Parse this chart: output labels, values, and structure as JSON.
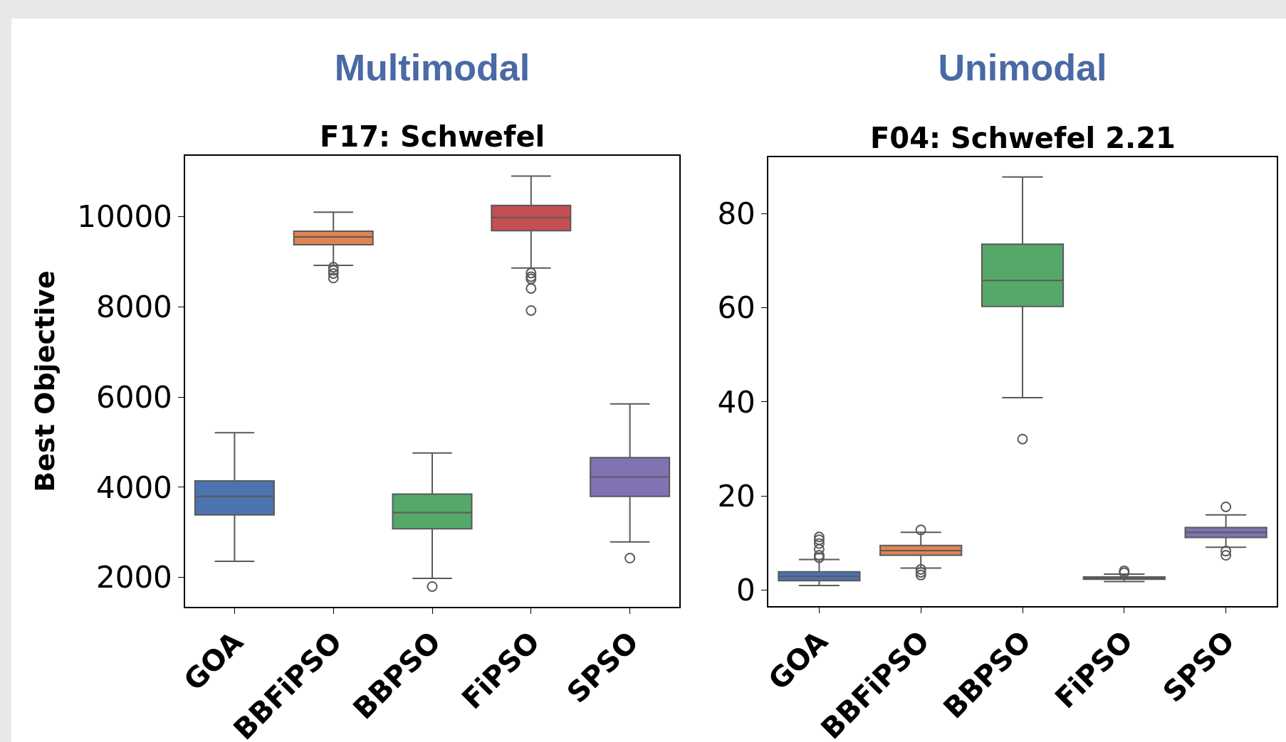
{
  "chart_data": [
    {
      "type": "box",
      "title": "Multimodal",
      "subtitle": "F17: Schwefel",
      "ylabel": "Best Objective",
      "categories": [
        "GOA",
        "BBFiPSO",
        "BBPSO",
        "FiPSO",
        "SPSO"
      ],
      "colors": [
        "#4c72b0",
        "#dd8452",
        "#55a868",
        "#c44e52",
        "#8172b3"
      ],
      "boxes": [
        {
          "low": 2360,
          "q1": 3390,
          "median": 3800,
          "q3": 4140,
          "high": 5210
        },
        {
          "low": 8920,
          "q1": 9380,
          "median": 9550,
          "q3": 9680,
          "high": 10100,
          "outliers": [
            8880,
            8810,
            8740,
            8640
          ]
        },
        {
          "low": 1980,
          "q1": 3080,
          "median": 3440,
          "q3": 3850,
          "high": 4760,
          "outliers": [
            1800
          ]
        },
        {
          "low": 8860,
          "q1": 9690,
          "median": 9980,
          "q3": 10250,
          "high": 10900,
          "outliers": [
            8750,
            8670,
            8620,
            8410,
            7920
          ]
        },
        {
          "low": 2790,
          "q1": 3800,
          "median": 4230,
          "q3": 4660,
          "high": 5850,
          "outliers": [
            2430
          ]
        }
      ],
      "ylim": [
        1350,
        11350
      ],
      "yticks": [
        2000,
        4000,
        6000,
        8000,
        10000
      ]
    },
    {
      "type": "box",
      "title": "Unimodal",
      "subtitle": "F04: Schwefel 2.21",
      "categories": [
        "GOA",
        "BBFiPSO",
        "BBPSO",
        "FiPSO",
        "SPSO"
      ],
      "colors": [
        "#4c72b0",
        "#dd8452",
        "#55a868",
        "#c44e52",
        "#8172b3"
      ],
      "boxes": [
        {
          "low": 1.0,
          "q1": 2.0,
          "median": 2.9,
          "q3": 3.9,
          "high": 6.5,
          "outliers": [
            11.3,
            10.7,
            9.9,
            8.7,
            7.4,
            6.9
          ]
        },
        {
          "low": 4.7,
          "q1": 7.4,
          "median": 8.4,
          "q3": 9.5,
          "high": 12.3,
          "outliers": [
            12.8,
            4.4,
            3.8,
            3.2
          ]
        },
        {
          "low": 40.9,
          "q1": 60.3,
          "median": 65.8,
          "q3": 73.5,
          "high": 87.8,
          "outliers": [
            32.1
          ]
        },
        {
          "low": 1.8,
          "q1": 2.3,
          "median": 2.5,
          "q3": 2.8,
          "high": 3.4,
          "outliers": [
            4.1,
            3.7
          ]
        },
        {
          "low": 9.1,
          "q1": 11.2,
          "median": 12.3,
          "q3": 13.3,
          "high": 16.0,
          "outliers": [
            17.7,
            8.3,
            7.4
          ]
        }
      ],
      "ylim": [
        -3.4,
        92
      ],
      "yticks": [
        0,
        20,
        40,
        60,
        80
      ]
    }
  ]
}
